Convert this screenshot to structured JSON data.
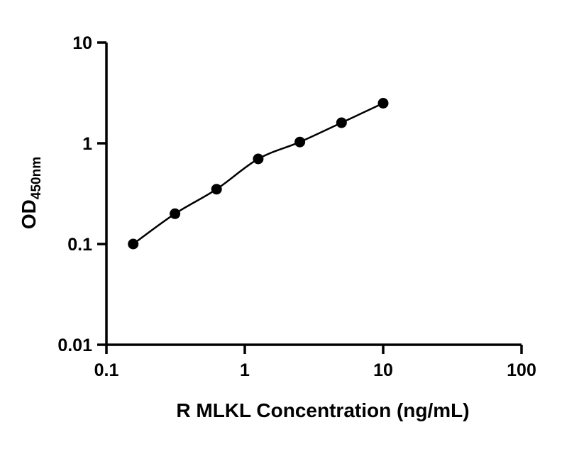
{
  "chart_data": {
    "type": "scatter",
    "x_scale": "log",
    "y_scale": "log",
    "xlim": [
      0.1,
      100
    ],
    "ylim": [
      0.01,
      10
    ],
    "x": [
      0.156,
      0.313,
      0.625,
      1.25,
      2.5,
      5,
      10
    ],
    "y": [
      0.1,
      0.2,
      0.35,
      0.7,
      1.03,
      1.6,
      2.5
    ],
    "xlabel": "R MLKL Concentration (ng/mL)",
    "ylabel_main": "OD",
    "ylabel_sub": "450nm",
    "x_ticks": [
      0.1,
      1,
      10,
      100
    ],
    "x_tick_labels": [
      "0.1",
      "1",
      "10",
      "100"
    ],
    "y_ticks": [
      0.01,
      0.1,
      1,
      10
    ],
    "y_tick_labels": [
      "0.01",
      "0.1",
      "1",
      "10"
    ],
    "fit_line": true,
    "grid": false,
    "legend": "none",
    "marker_color": "#000000",
    "line_color": "#000000",
    "axis_color": "#000000"
  }
}
